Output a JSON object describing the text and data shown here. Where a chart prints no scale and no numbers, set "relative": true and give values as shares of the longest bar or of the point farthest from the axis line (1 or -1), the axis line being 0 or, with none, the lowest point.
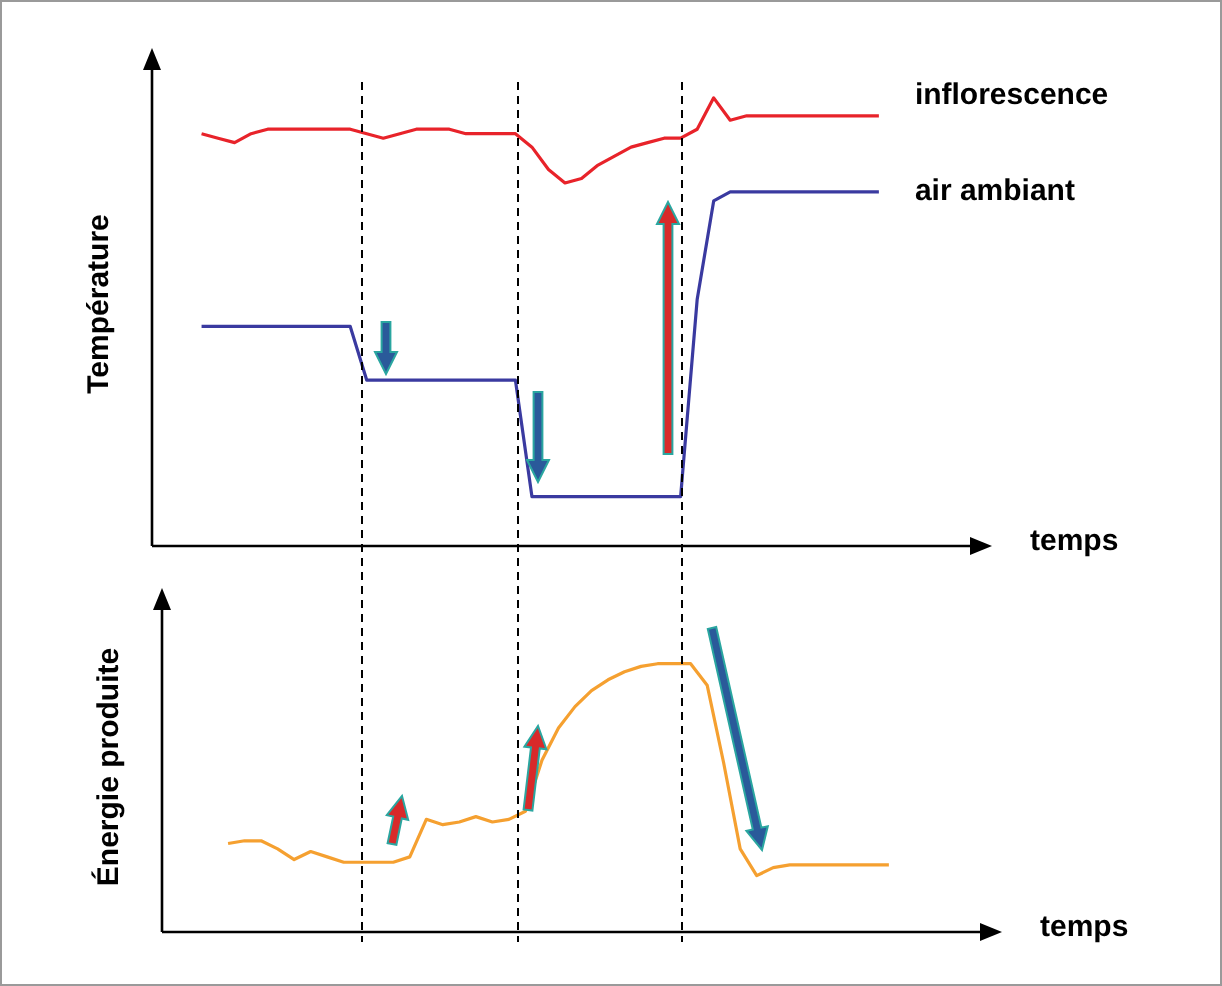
{
  "chart_data": [
    {
      "type": "line",
      "relative": true,
      "ylabel": "Température",
      "xlabel": "temps",
      "marker": "none",
      "categories": [
        null,
        null,
        null,
        null,
        null,
        null,
        null,
        null,
        null,
        null,
        null,
        null,
        null,
        null,
        null,
        null,
        null,
        null,
        null,
        null,
        null,
        null,
        null,
        null,
        null,
        null,
        null,
        null,
        null,
        null,
        null,
        null,
        null,
        null,
        null,
        null,
        null,
        null,
        null,
        null,
        null,
        null,
        null,
        null,
        null,
        null,
        null,
        null,
        null,
        null,
        null
      ],
      "series": [
        {
          "name": "inflorescence",
          "color": "#e8232a",
          "values": [
            null,
            null,
            null,
            0.92,
            0.91,
            0.9,
            0.92,
            0.93,
            0.93,
            0.93,
            0.93,
            0.93,
            0.93,
            0.92,
            0.91,
            0.92,
            0.93,
            0.93,
            0.93,
            0.92,
            0.92,
            0.92,
            0.92,
            0.89,
            0.84,
            0.81,
            0.82,
            0.85,
            0.87,
            0.89,
            0.9,
            0.91,
            0.91,
            0.93,
            1,
            0.95,
            0.96,
            0.96,
            0.96,
            0.96,
            0.96,
            0.96,
            0.96,
            0.96,
            0.96,
            null,
            null,
            null,
            null,
            null,
            null
          ]
        },
        {
          "name": "air ambiant",
          "color": "#3a3aa0",
          "values": [
            null,
            null,
            null,
            0.49,
            0.49,
            0.49,
            0.49,
            0.49,
            0.49,
            0.49,
            0.49,
            0.49,
            0.49,
            0.37,
            0.37,
            0.37,
            0.37,
            0.37,
            0.37,
            0.37,
            0.37,
            0.37,
            0.37,
            0.11,
            0.11,
            0.11,
            0.11,
            0.11,
            0.11,
            0.11,
            0.11,
            0.11,
            0.11,
            0.55,
            0.77,
            0.79,
            0.79,
            0.79,
            0.79,
            0.79,
            0.79,
            0.79,
            0.79,
            0.79,
            0.79,
            null,
            null,
            null,
            null,
            null,
            null
          ]
        }
      ]
    },
    {
      "type": "line",
      "relative": true,
      "ylabel": "Énergie produite",
      "xlabel": "temps",
      "marker": "none",
      "categories": [
        null,
        null,
        null,
        null,
        null,
        null,
        null,
        null,
        null,
        null,
        null,
        null,
        null,
        null,
        null,
        null,
        null,
        null,
        null,
        null,
        null,
        null,
        null,
        null,
        null,
        null,
        null,
        null,
        null,
        null,
        null,
        null,
        null,
        null,
        null,
        null,
        null,
        null,
        null,
        null,
        null,
        null,
        null,
        null,
        null,
        null,
        null,
        null,
        null,
        null,
        null
      ],
      "series": [
        {
          "color": "#f5a030",
          "values": [
            null,
            null,
            null,
            null,
            0.33,
            0.34,
            0.34,
            0.31,
            0.27,
            0.3,
            0.28,
            0.26,
            0.26,
            0.26,
            0.26,
            0.28,
            0.42,
            0.4,
            0.41,
            0.43,
            0.41,
            0.42,
            0.45,
            0.64,
            0.76,
            0.84,
            0.9,
            0.94,
            0.97,
            0.99,
            1,
            1,
            1,
            0.92,
            0.63,
            0.31,
            0.21,
            0.24,
            0.25,
            0.25,
            0.25,
            0.25,
            0.25,
            0.25,
            0.25,
            null,
            null,
            null,
            null,
            null,
            null
          ]
        }
      ]
    }
  ]
}
